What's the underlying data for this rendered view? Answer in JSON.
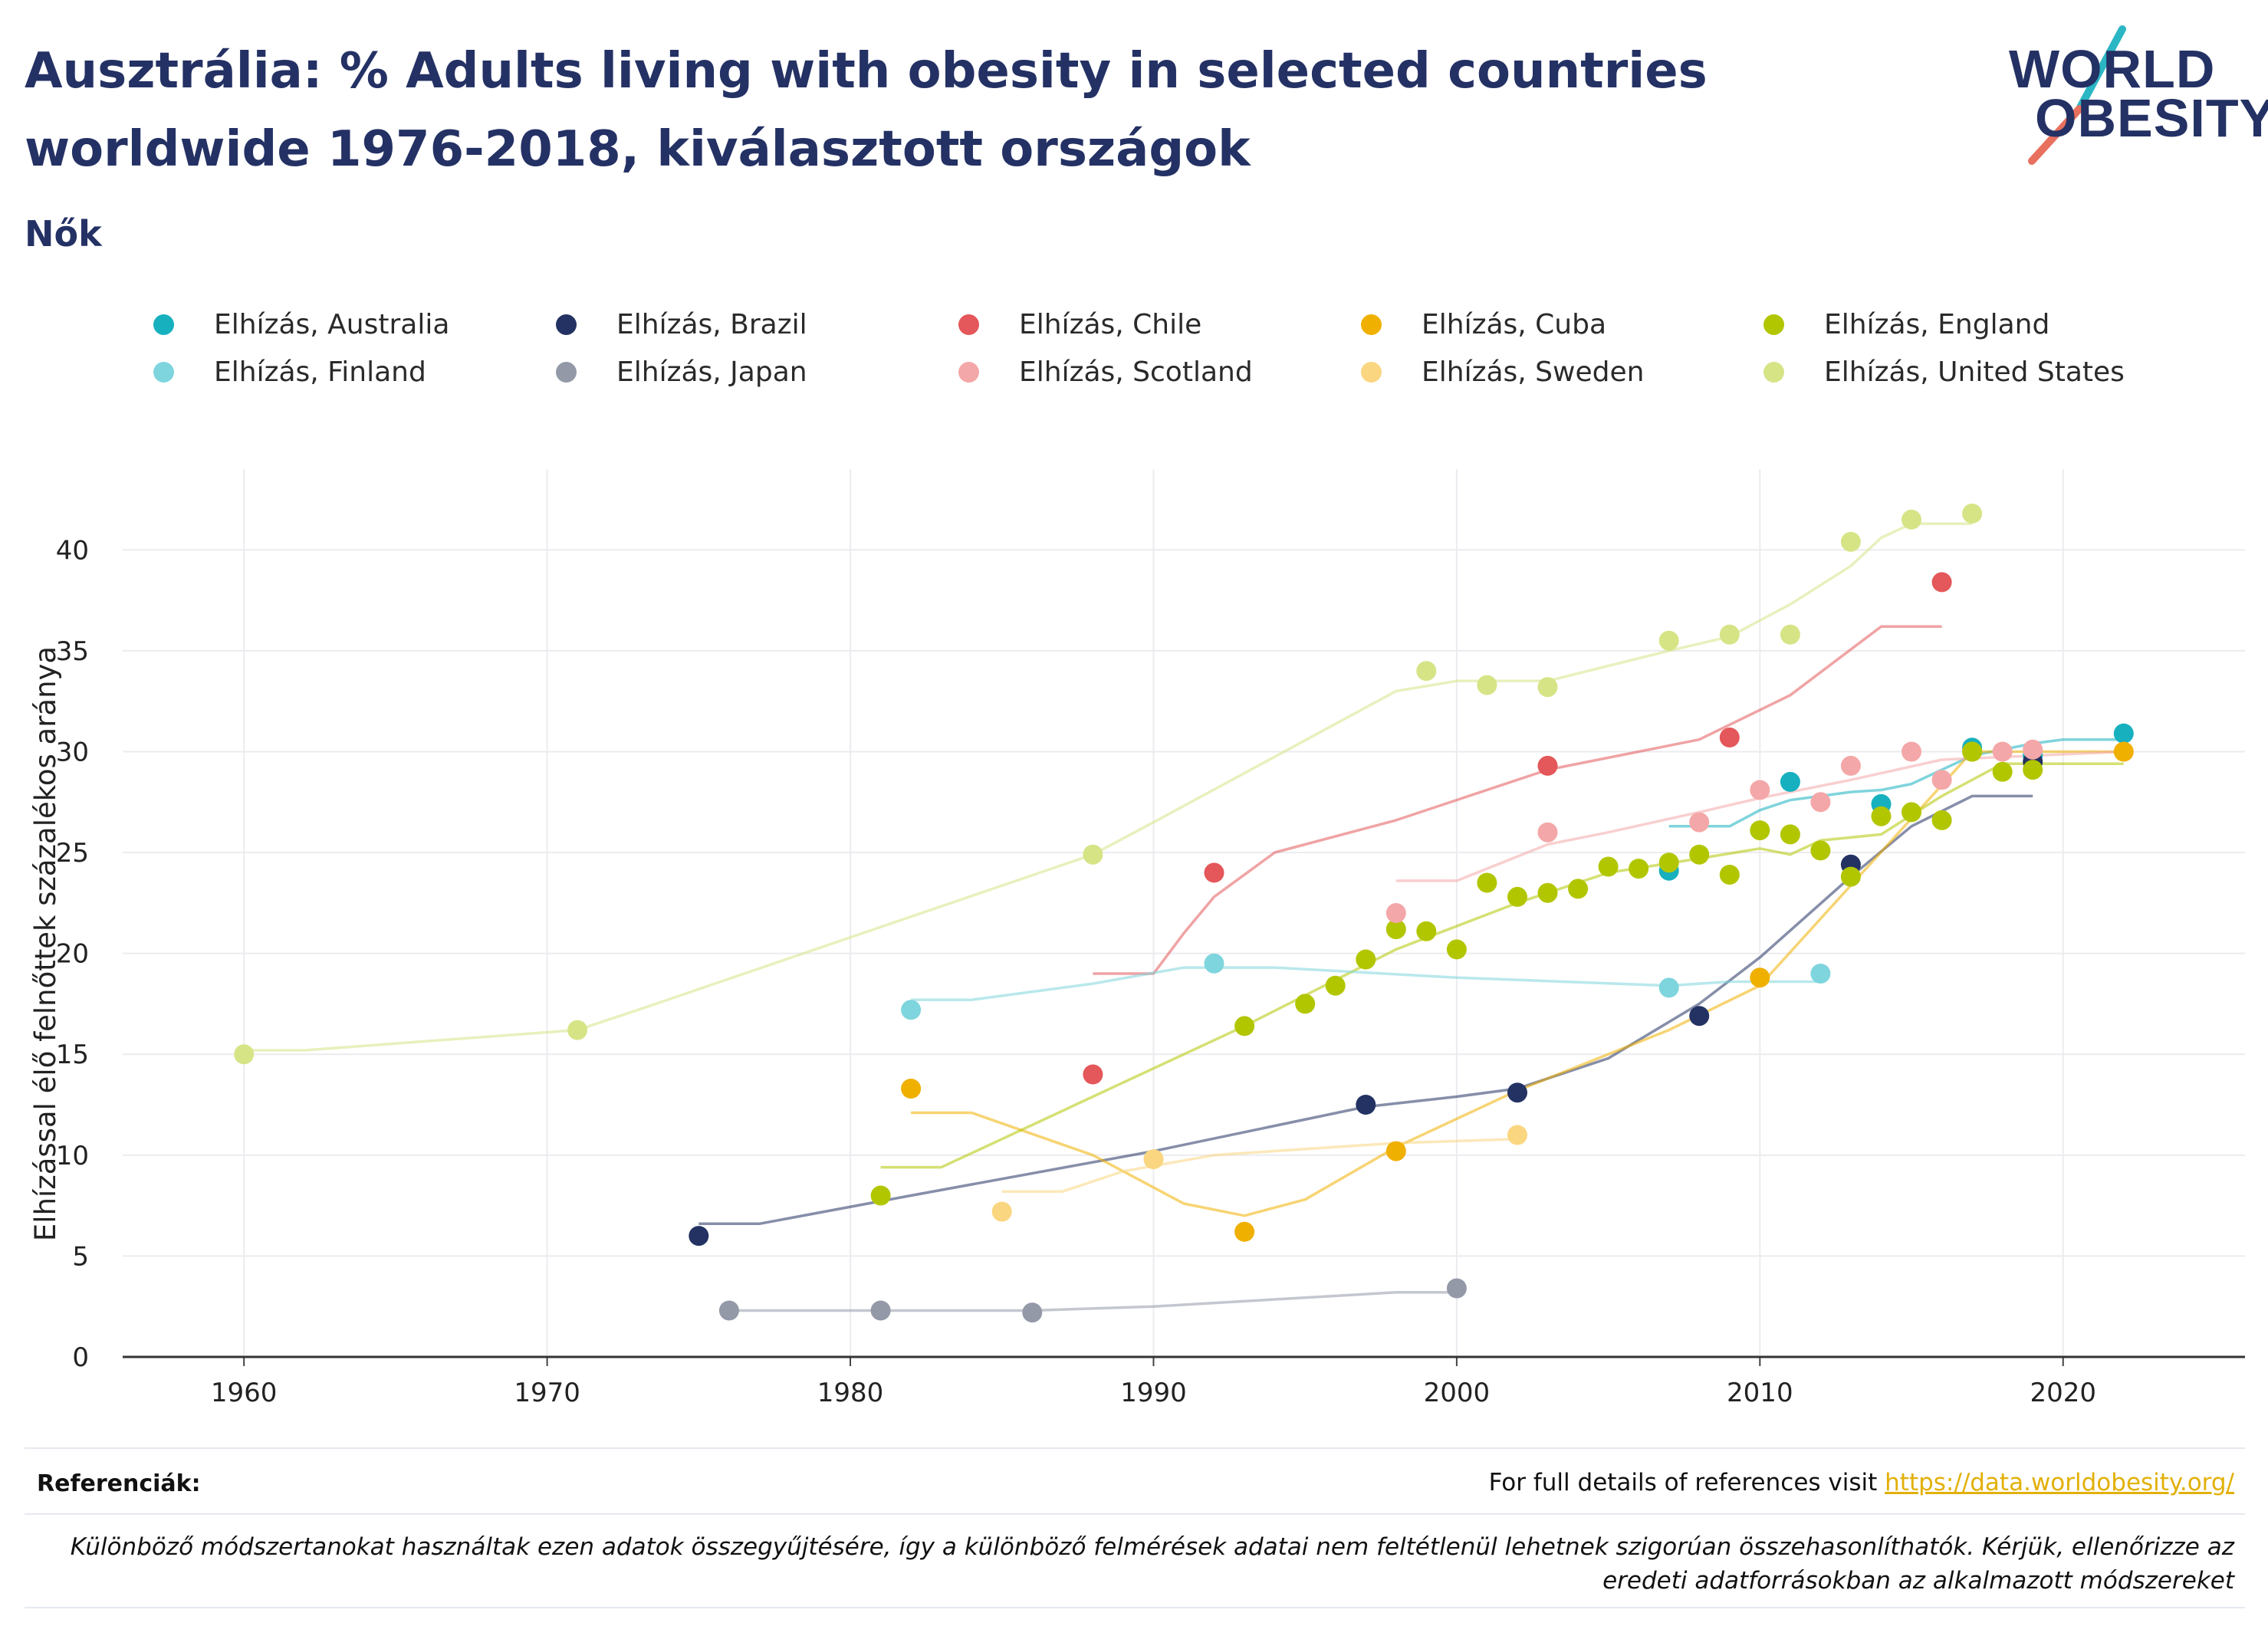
{
  "header": {
    "title": "Ausztrália: % Adults living with obesity in selected countries worldwide 1976-2018, kiválasztott országok",
    "subtitle": "Nők"
  },
  "logo": {
    "line1": "WORLD",
    "line2": "OBESITY",
    "brand_navy": "#243164",
    "brand_teal": "#2bb6c4",
    "brand_coral": "#e8705e"
  },
  "chart_data": {
    "type": "scatter",
    "title": "",
    "xlabel": "",
    "ylabel": "Elhízással élő felnőttek százalékos aránya",
    "xlim": [
      1956,
      2026
    ],
    "ylim": [
      0,
      44
    ],
    "x_ticks": [
      1960,
      1970,
      1980,
      1990,
      2000,
      2010,
      2020
    ],
    "y_ticks": [
      0,
      5,
      10,
      15,
      20,
      25,
      30,
      35,
      40
    ],
    "grid": true,
    "legend_position": "top",
    "series": [
      {
        "name": "Elhízás, Australia",
        "color": "#17b0bf",
        "points": [
          [
            2007,
            24.1
          ],
          [
            2011,
            28.5
          ],
          [
            2014,
            27.4
          ],
          [
            2017,
            30.2
          ],
          [
            2019,
            29.8
          ],
          [
            2022,
            30.9
          ]
        ],
        "trend": [
          [
            2007,
            26.3
          ],
          [
            2009,
            26.3
          ],
          [
            2010,
            27.1
          ],
          [
            2011,
            27.6
          ],
          [
            2013,
            28.0
          ],
          [
            2014,
            28.1
          ],
          [
            2015,
            28.4
          ],
          [
            2017,
            29.8
          ],
          [
            2019,
            30.4
          ],
          [
            2020,
            30.6
          ],
          [
            2022,
            30.6
          ]
        ]
      },
      {
        "name": "Elhízás, Brazil",
        "color": "#233262",
        "points": [
          [
            1975,
            6.0
          ],
          [
            1997,
            12.5
          ],
          [
            2002,
            13.1
          ],
          [
            2008,
            16.9
          ],
          [
            2013,
            24.4
          ],
          [
            2019,
            29.5
          ]
        ],
        "trend": [
          [
            1975,
            6.6
          ],
          [
            1977,
            6.6
          ],
          [
            1982,
            8.0
          ],
          [
            1990,
            10.2
          ],
          [
            1997,
            12.4
          ],
          [
            2000,
            12.9
          ],
          [
            2002,
            13.3
          ],
          [
            2005,
            14.8
          ],
          [
            2008,
            17.5
          ],
          [
            2010,
            19.8
          ],
          [
            2013,
            23.8
          ],
          [
            2015,
            26.3
          ],
          [
            2017,
            27.8
          ],
          [
            2019,
            27.8
          ]
        ]
      },
      {
        "name": "Elhízás, Chile",
        "color": "#e4575a",
        "points": [
          [
            1988,
            14.0
          ],
          [
            1992,
            24.0
          ],
          [
            2003,
            29.3
          ],
          [
            2009,
            30.7
          ],
          [
            2016,
            38.4
          ]
        ],
        "trend": [
          [
            1988,
            19.0
          ],
          [
            1990,
            19.0
          ],
          [
            1991,
            21.0
          ],
          [
            1992,
            22.8
          ],
          [
            1994,
            25.0
          ],
          [
            1998,
            26.6
          ],
          [
            2003,
            29.1
          ],
          [
            2006,
            30.0
          ],
          [
            2008,
            30.6
          ],
          [
            2011,
            32.8
          ],
          [
            2014,
            36.2
          ],
          [
            2016,
            36.2
          ]
        ]
      },
      {
        "name": "Elhízás, Cuba",
        "color": "#f0b000",
        "points": [
          [
            1982,
            13.3
          ],
          [
            1993,
            6.2
          ],
          [
            1998,
            10.2
          ],
          [
            2010,
            18.8
          ],
          [
            2017,
            30.0
          ],
          [
            2022,
            30.0
          ]
        ],
        "trend": [
          [
            1982,
            12.1
          ],
          [
            1984,
            12.1
          ],
          [
            1988,
            10.0
          ],
          [
            1991,
            7.6
          ],
          [
            1993,
            7.0
          ],
          [
            1995,
            7.8
          ],
          [
            1998,
            10.4
          ],
          [
            2002,
            13.2
          ],
          [
            2007,
            16.2
          ],
          [
            2010,
            18.4
          ],
          [
            2017,
            30.0
          ],
          [
            2022,
            30.0
          ]
        ]
      },
      {
        "name": "Elhízás, England",
        "color": "#b2c600",
        "points": [
          [
            1981,
            8.0
          ],
          [
            1993,
            16.4
          ],
          [
            1995,
            17.5
          ],
          [
            1996,
            18.4
          ],
          [
            1997,
            19.7
          ],
          [
            1998,
            21.2
          ],
          [
            1999,
            21.1
          ],
          [
            2000,
            20.2
          ],
          [
            2001,
            23.5
          ],
          [
            2002,
            22.8
          ],
          [
            2003,
            23.0
          ],
          [
            2004,
            23.2
          ],
          [
            2005,
            24.3
          ],
          [
            2006,
            24.2
          ],
          [
            2007,
            24.5
          ],
          [
            2008,
            24.9
          ],
          [
            2009,
            23.9
          ],
          [
            2010,
            26.1
          ],
          [
            2011,
            25.9
          ],
          [
            2012,
            25.1
          ],
          [
            2013,
            23.8
          ],
          [
            2014,
            26.8
          ],
          [
            2015,
            27.0
          ],
          [
            2016,
            26.6
          ],
          [
            2017,
            30.0
          ],
          [
            2018,
            29.0
          ],
          [
            2019,
            29.1
          ]
        ],
        "trend": [
          [
            1981,
            9.4
          ],
          [
            1983,
            9.4
          ],
          [
            1993,
            16.4
          ],
          [
            1998,
            20.2
          ],
          [
            2002,
            22.5
          ],
          [
            2005,
            24.0
          ],
          [
            2008,
            24.7
          ],
          [
            2010,
            25.2
          ],
          [
            2011,
            24.9
          ],
          [
            2012,
            25.6
          ],
          [
            2014,
            25.9
          ],
          [
            2016,
            27.8
          ],
          [
            2018,
            29.4
          ],
          [
            2022,
            29.4
          ]
        ]
      },
      {
        "name": "Elhízás, Finland",
        "color": "#7fd5dd",
        "points": [
          [
            1982,
            17.2
          ],
          [
            1992,
            19.5
          ],
          [
            2007,
            18.3
          ],
          [
            2012,
            19.0
          ]
        ],
        "trend": [
          [
            1982,
            17.7
          ],
          [
            1984,
            17.7
          ],
          [
            1988,
            18.5
          ],
          [
            1991,
            19.3
          ],
          [
            1994,
            19.3
          ],
          [
            2000,
            18.8
          ],
          [
            2007,
            18.4
          ],
          [
            2009,
            18.6
          ],
          [
            2012,
            18.6
          ]
        ]
      },
      {
        "name": "Elhízás, Japan",
        "color": "#9499a8",
        "points": [
          [
            1976,
            2.3
          ],
          [
            1981,
            2.3
          ],
          [
            1986,
            2.2
          ],
          [
            2000,
            3.4
          ]
        ],
        "trend": [
          [
            1976,
            2.3
          ],
          [
            1986,
            2.3
          ],
          [
            1990,
            2.5
          ],
          [
            1998,
            3.2
          ],
          [
            2000,
            3.2
          ]
        ]
      },
      {
        "name": "Elhízás, Scotland",
        "color": "#f4a7a8",
        "points": [
          [
            1998,
            22.0
          ],
          [
            2003,
            26.0
          ],
          [
            2008,
            26.5
          ],
          [
            2010,
            28.1
          ],
          [
            2012,
            27.5
          ],
          [
            2013,
            29.3
          ],
          [
            2015,
            30.0
          ],
          [
            2016,
            28.6
          ],
          [
            2018,
            30.0
          ],
          [
            2019,
            30.1
          ]
        ],
        "trend": [
          [
            1998,
            23.6
          ],
          [
            2000,
            23.6
          ],
          [
            2003,
            25.4
          ],
          [
            2005,
            26.0
          ],
          [
            2008,
            27.0
          ],
          [
            2010,
            27.7
          ],
          [
            2013,
            28.6
          ],
          [
            2016,
            29.6
          ],
          [
            2022,
            30.0
          ]
        ]
      },
      {
        "name": "Elhízás, Sweden",
        "color": "#fad680",
        "points": [
          [
            1985,
            7.2
          ],
          [
            1990,
            9.8
          ],
          [
            2002,
            11.0
          ]
        ],
        "trend": [
          [
            1985,
            8.2
          ],
          [
            1987,
            8.2
          ],
          [
            1989,
            9.2
          ],
          [
            1992,
            10.0
          ],
          [
            1998,
            10.6
          ],
          [
            2002,
            10.8
          ]
        ]
      },
      {
        "name": "Elhízás, United States",
        "color": "#d6e486",
        "points": [
          [
            1960,
            15.0
          ],
          [
            1971,
            16.2
          ],
          [
            1988,
            24.9
          ],
          [
            1999,
            34.0
          ],
          [
            2001,
            33.3
          ],
          [
            2003,
            33.2
          ],
          [
            2007,
            35.5
          ],
          [
            2009,
            35.8
          ],
          [
            2011,
            35.8
          ],
          [
            2013,
            40.4
          ],
          [
            2015,
            41.5
          ],
          [
            2017,
            41.8
          ]
        ],
        "trend": [
          [
            1960,
            15.2
          ],
          [
            1962,
            15.2
          ],
          [
            1971,
            16.2
          ],
          [
            1973,
            17.2
          ],
          [
            1988,
            24.9
          ],
          [
            1990,
            26.5
          ],
          [
            1998,
            33.0
          ],
          [
            2000,
            33.5
          ],
          [
            2003,
            33.5
          ],
          [
            2007,
            35.0
          ],
          [
            2009,
            35.7
          ],
          [
            2011,
            37.3
          ],
          [
            2013,
            39.2
          ],
          [
            2014,
            40.6
          ],
          [
            2015,
            41.3
          ],
          [
            2017,
            41.3
          ]
        ]
      }
    ]
  },
  "footer": {
    "ref_label": "Referenciák:",
    "ref_text": "For full details of references visit",
    "ref_link": "https://data.worldobesity.org/",
    "disclaimer": "Különböző módszertanokat használtak ezen adatok összegyűjtésére, így a különböző felmérések adatai nem feltétlenül lehetnek szigorúan összehasonlíthatók. Kérjük, ellenőrizze az eredeti adatforrásokban az alkalmazott módszereket"
  }
}
